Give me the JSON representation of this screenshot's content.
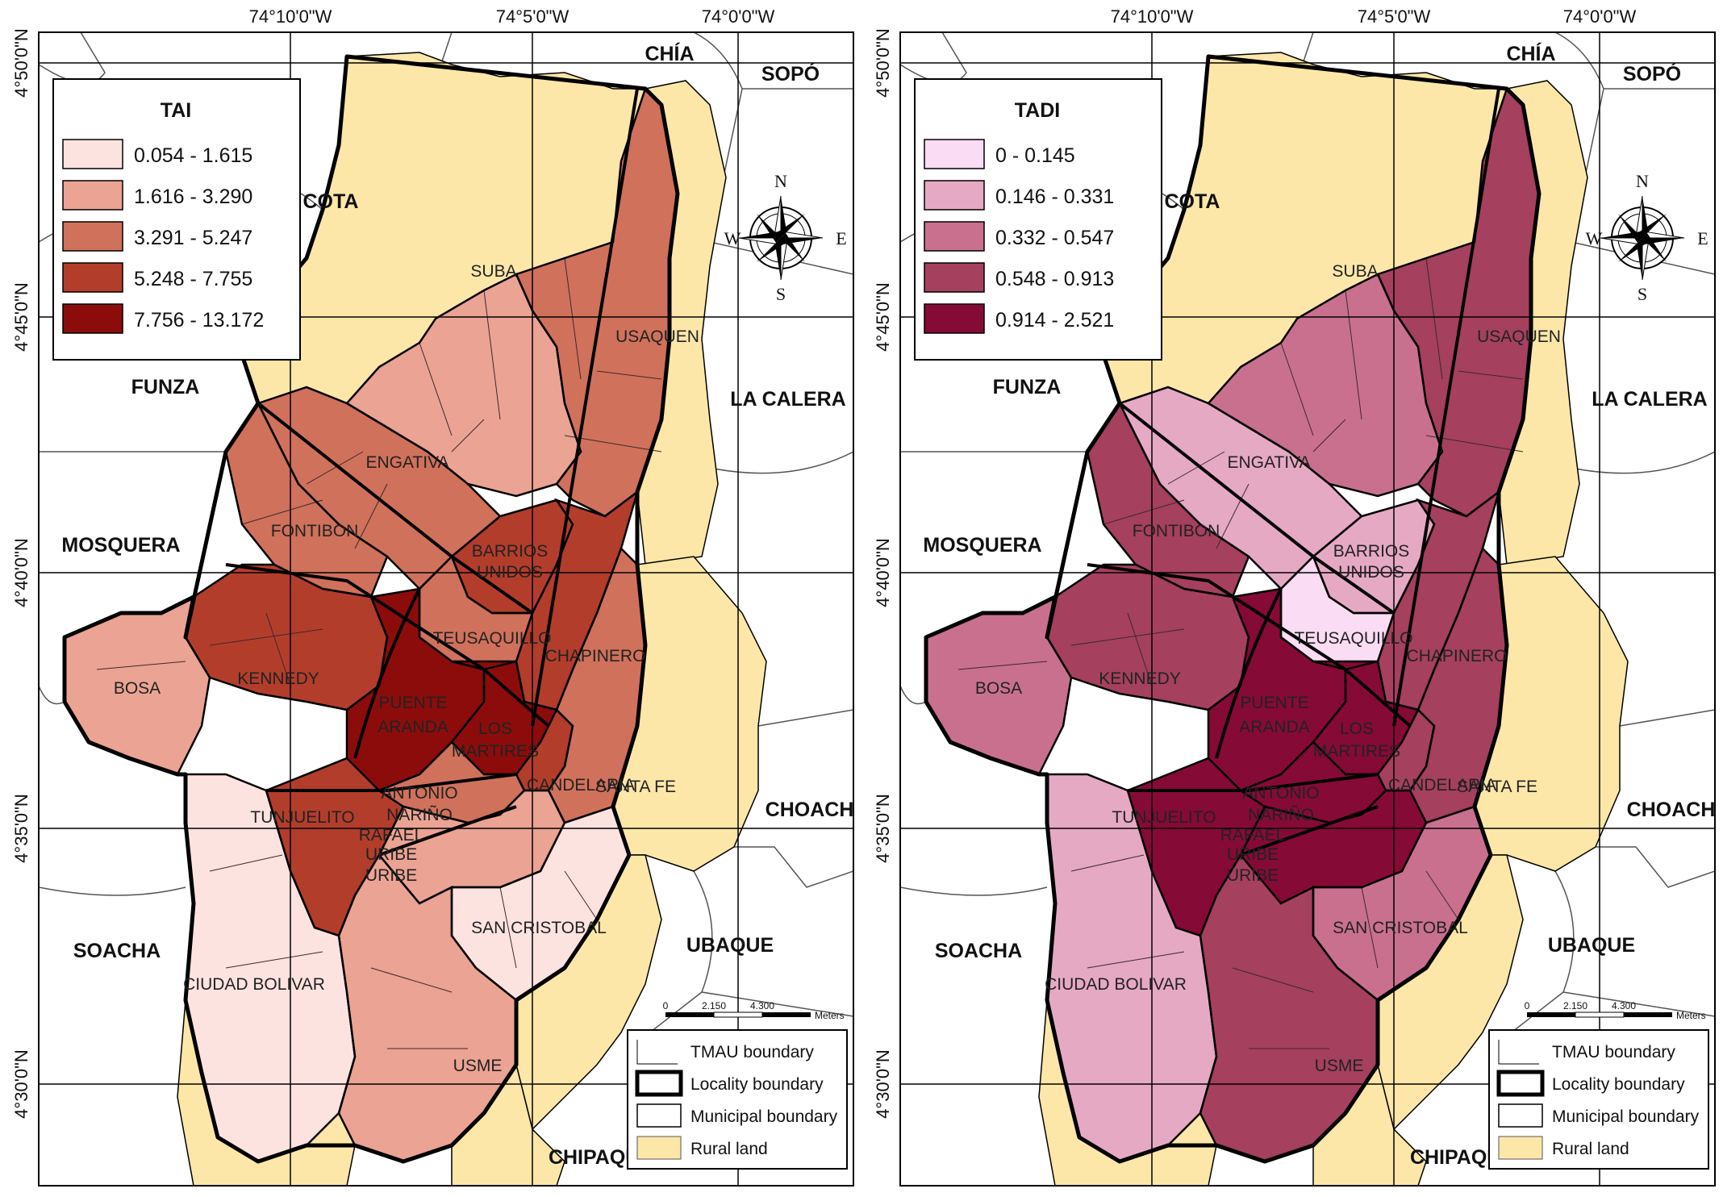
{
  "coordinates": {
    "lon_labels": [
      "74°10'0\"W",
      "74°5'0\"W",
      "74°0'0\"W"
    ],
    "lat_labels": [
      "4°50'0\"N",
      "4°45'0\"N",
      "4°40'0\"N",
      "4°35'0\"N",
      "4°30'0\"N"
    ]
  },
  "municipalities": [
    "CHÍA",
    "SOPÓ",
    "COTA",
    "FUNZA",
    "LA CALERA",
    "MOSQUERA",
    "CHOACHÍ",
    "SOACHA",
    "UBAQUE",
    "CHIPAQUE"
  ],
  "localities": [
    "SUBA",
    "USAQUEN",
    "ENGATIVA",
    "FONTIBON",
    "BARRIOS UNIDOS",
    "TEUSAQUILLO",
    "CHAPINERO",
    "KENNEDY",
    "BOSA",
    "PUENTE ARANDA",
    "LOS MARTIRES",
    "CANDELARIA",
    "SANTA FE",
    "ANTONIO NARIÑO",
    "TUNJUELITO",
    "RAFAEL URIBE URIBE",
    "SAN CRISTOBAL",
    "CIUDAD BOLIVAR",
    "USME"
  ],
  "scale": {
    "ticks": [
      "0",
      "2.150",
      "4.300"
    ],
    "unit": "Meters"
  },
  "compass": {
    "n": "N",
    "s": "S",
    "e": "E",
    "w": "W"
  },
  "map_key": {
    "tmau": "TMAU boundary",
    "locality": "Locality boundary",
    "municipal": "Municipal boundary",
    "rural": "Rural land",
    "rural_color": "#fce7a9"
  },
  "maps": [
    {
      "index_label": "TAI",
      "classes": [
        {
          "range": "0.054 - 1.615",
          "color": "#fde3e0"
        },
        {
          "range": "1.616 - 3.290",
          "color": "#eba394"
        },
        {
          "range": "3.291 - 5.247",
          "color": "#d0715c"
        },
        {
          "range": "5.248 - 7.755",
          "color": "#b33d2b"
        },
        {
          "range": "7.756 - 13.172",
          "color": "#8c0c0c"
        }
      ],
      "locality_class": {
        "SUBA": 1,
        "USAQUEN": 2,
        "ENGATIVA": 2,
        "FONTIBON": 2,
        "BARRIOS UNIDOS": 3,
        "TEUSAQUILLO": 2,
        "CHAPINERO": 3,
        "KENNEDY": 3,
        "BOSA": 1,
        "PUENTE ARANDA": 4,
        "LOS MARTIRES": 4,
        "CANDELARIA": 3,
        "SANTA FE": 2,
        "ANTONIO NARIÑO": 2,
        "TUNJUELITO": 3,
        "RAFAEL URIBE URIBE": 1,
        "SAN CRISTOBAL": 0,
        "CIUDAD BOLIVAR": 0,
        "USME": 1
      }
    },
    {
      "index_label": "TADI",
      "classes": [
        {
          "range": "0 - 0.145",
          "color": "#fadcf4"
        },
        {
          "range": "0.146 - 0.331",
          "color": "#e6a9c4"
        },
        {
          "range": "0.332 - 0.547",
          "color": "#c9708f"
        },
        {
          "range": "0.548 - 0.913",
          "color": "#a5405f"
        },
        {
          "range": "0.914 - 2.521",
          "color": "#860a36"
        }
      ],
      "locality_class": {
        "SUBA": 2,
        "USAQUEN": 3,
        "ENGATIVA": 1,
        "FONTIBON": 3,
        "BARRIOS UNIDOS": 1,
        "TEUSAQUILLO": 0,
        "CHAPINERO": 3,
        "KENNEDY": 3,
        "BOSA": 2,
        "PUENTE ARANDA": 4,
        "LOS MARTIRES": 4,
        "CANDELARIA": 3,
        "SANTA FE": 3,
        "ANTONIO NARIÑO": 4,
        "TUNJUELITO": 4,
        "RAFAEL URIBE URIBE": 4,
        "SAN CRISTOBAL": 2,
        "CIUDAD BOLIVAR": 1,
        "USME": 3
      }
    }
  ]
}
